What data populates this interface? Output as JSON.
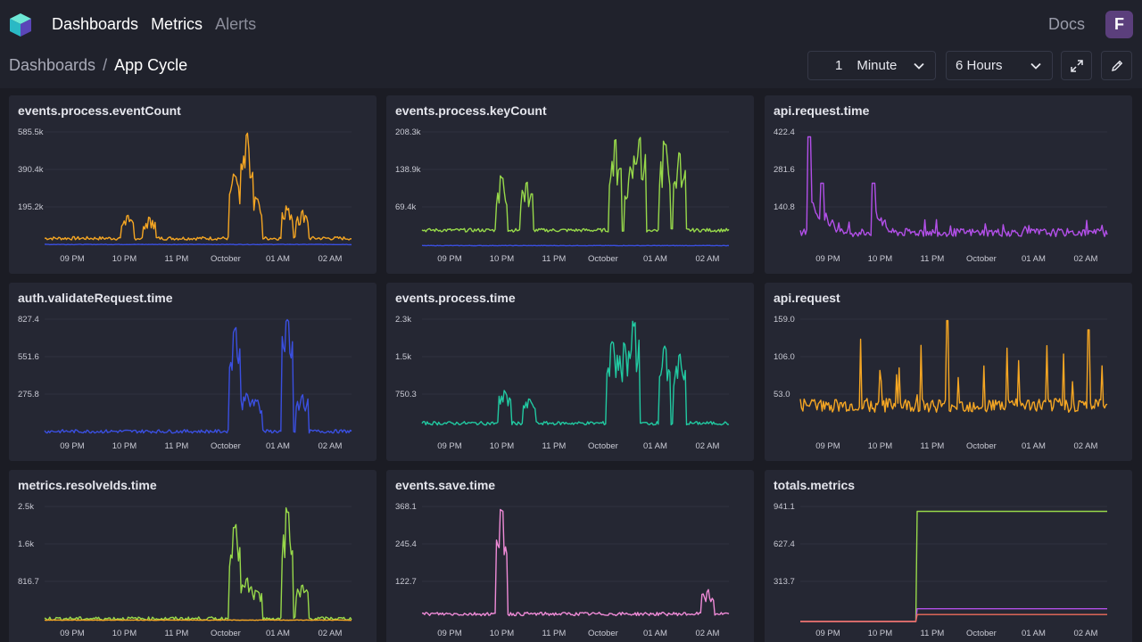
{
  "nav": {
    "items": [
      {
        "label": "Dashboards",
        "muted": false
      },
      {
        "label": "Metrics",
        "muted": false
      },
      {
        "label": "Alerts",
        "muted": true
      }
    ],
    "docs_label": "Docs",
    "avatar_letter": "F"
  },
  "breadcrumb": {
    "parent": "Dashboards",
    "separator": "/",
    "current": "App Cycle"
  },
  "controls": {
    "interval_value": "1",
    "interval_unit": "Minute",
    "range": "6 Hours"
  },
  "x_tick_labels": [
    "09 PM",
    "10 PM",
    "11 PM",
    "October",
    "01 AM",
    "02 AM"
  ],
  "colors": {
    "orange": "#f5a623",
    "blue": "#3a4fe0",
    "lime": "#97d84a",
    "purple": "#b24fe8",
    "teal": "#21c9a1",
    "pink": "#ee8ad6",
    "salmon": "#f06c5c",
    "background": "#1b1c24",
    "panel": "#252733"
  },
  "chart_data": [
    {
      "type": "line",
      "title": "events.process.eventCount",
      "y_ticks": [
        "585.5k",
        "390.4k",
        "195.2k"
      ],
      "ylim": [
        0,
        620000
      ],
      "series": [
        {
          "color": "#f5a623",
          "shape": "spiky",
          "peaks": [
            [
              0.27,
              0.28
            ],
            [
              0.34,
              0.28
            ],
            [
              0.62,
              0.65
            ],
            [
              0.66,
              1.0
            ],
            [
              0.69,
              0.45
            ],
            [
              0.79,
              0.36
            ],
            [
              0.84,
              0.33
            ]
          ],
          "base": 0.06
        },
        {
          "color": "#3a4fe0",
          "shape": "flat",
          "base": 0.02
        }
      ]
    },
    {
      "type": "line",
      "title": "events.process.keyCount",
      "y_ticks": [
        "208.3k",
        "138.9k",
        "69.4k"
      ],
      "ylim": [
        0,
        220000
      ],
      "series": [
        {
          "color": "#97d84a",
          "shape": "spiky",
          "peaks": [
            [
              0.26,
              0.62
            ],
            [
              0.34,
              0.58
            ],
            [
              0.63,
              0.95
            ],
            [
              0.68,
              0.7
            ],
            [
              0.71,
              0.95
            ],
            [
              0.79,
              0.92
            ],
            [
              0.84,
              0.82
            ]
          ],
          "base": 0.13
        },
        {
          "color": "#3a4fe0",
          "shape": "flat",
          "base": 0.01
        }
      ]
    },
    {
      "type": "line",
      "title": "api.request.time",
      "y_ticks": [
        "422.4",
        "281.6",
        "140.8"
      ],
      "ylim": [
        0,
        440
      ],
      "series": [
        {
          "color": "#b24fe8",
          "shape": "decay",
          "peaks": [
            [
              0.03,
              0.95
            ],
            [
              0.07,
              0.55
            ],
            [
              0.24,
              0.55
            ]
          ],
          "base": 0.09
        }
      ]
    },
    {
      "type": "line",
      "title": "auth.validateRequest.time",
      "y_ticks": [
        "827.4",
        "551.6",
        "275.8"
      ],
      "ylim": [
        0,
        860
      ],
      "series": [
        {
          "color": "#3a4fe0",
          "shape": "spiky",
          "peaks": [
            [
              0.62,
              0.92
            ],
            [
              0.66,
              0.38
            ],
            [
              0.69,
              0.32
            ],
            [
              0.79,
              1.0
            ],
            [
              0.84,
              0.36
            ]
          ],
          "base": 0.01
        }
      ]
    },
    {
      "type": "line",
      "title": "events.process.time",
      "y_ticks": [
        "2.3k",
        "1.5k",
        "750.3"
      ],
      "ylim": [
        0,
        2400
      ],
      "series": [
        {
          "color": "#21c9a1",
          "shape": "spiky",
          "peaks": [
            [
              0.27,
              0.4
            ],
            [
              0.35,
              0.35
            ],
            [
              0.62,
              0.82
            ],
            [
              0.66,
              0.8
            ],
            [
              0.69,
              0.98
            ],
            [
              0.79,
              0.78
            ],
            [
              0.84,
              0.7
            ]
          ],
          "base": 0.08
        }
      ]
    },
    {
      "type": "line",
      "title": "api.request",
      "y_ticks": [
        "159.0",
        "106.0",
        "53.0"
      ],
      "ylim": [
        0,
        165
      ],
      "series": [
        {
          "color": "#f5a623",
          "shape": "noisy",
          "base": 0.25
        }
      ]
    },
    {
      "type": "line",
      "title": "metrics.resolveIds.time",
      "y_ticks": [
        "2.5k",
        "1.6k",
        "816.7"
      ],
      "ylim": [
        0,
        2600
      ],
      "series": [
        {
          "color": "#97d84a",
          "shape": "spiky",
          "peaks": [
            [
              0.62,
              0.85
            ],
            [
              0.66,
              0.38
            ],
            [
              0.69,
              0.3
            ],
            [
              0.79,
              0.98
            ],
            [
              0.84,
              0.35
            ]
          ],
          "base": 0.01
        },
        {
          "color": "#f5a623",
          "shape": "flat",
          "base": 0.01
        }
      ]
    },
    {
      "type": "line",
      "title": "events.save.time",
      "y_ticks": [
        "368.1",
        "245.4",
        "122.7"
      ],
      "ylim": [
        0,
        390
      ],
      "series": [
        {
          "color": "#ee8ad6",
          "shape": "spiky",
          "peaks": [
            [
              0.26,
              1.0
            ],
            [
              0.93,
              0.28
            ]
          ],
          "base": 0.05
        }
      ]
    },
    {
      "type": "line",
      "title": "totals.metrics",
      "y_ticks": [
        "941.1",
        "627.4",
        "313.7"
      ],
      "ylim": [
        0,
        1000
      ],
      "series": [
        {
          "color": "#97d84a",
          "shape": "step",
          "before": 0.0,
          "after": 0.95,
          "at": 0.38
        },
        {
          "color": "#b24fe8",
          "shape": "step",
          "before": 0.0,
          "after": 0.11,
          "at": 0.38
        },
        {
          "color": "#f06c5c",
          "shape": "step",
          "before": 0.0,
          "after": 0.06,
          "at": 0.38
        }
      ]
    }
  ]
}
